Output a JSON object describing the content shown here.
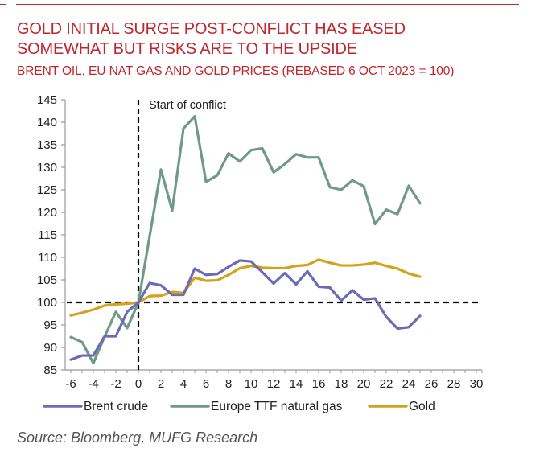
{
  "title_line1": "GOLD INITIAL SURGE POST-CONFLICT HAS EASED",
  "title_line2": "SOMEWHAT BUT RISKS ARE TO THE UPSIDE",
  "subtitle": "BRENT OIL, EU NAT GAS AND GOLD PRICES (REBASED 6 OCT 2023 = 100)",
  "source": "Source: Bloomberg, MUFG Research",
  "colors": {
    "title": "#c0262d",
    "brent": "#6b6bb8",
    "gas": "#6f9a85",
    "gold": "#d4a21a",
    "axis": "#999999",
    "reference": "#000000"
  },
  "chart_data": {
    "type": "line",
    "title": "BRENT OIL, EU NAT GAS AND GOLD PRICES (REBASED 6 OCT 2023 = 100)",
    "xlabel": "",
    "ylabel": "",
    "xlim": [
      -6.5,
      30.5
    ],
    "ylim": [
      85,
      145
    ],
    "xticks": [
      -6,
      -4,
      -2,
      0,
      2,
      4,
      6,
      8,
      10,
      12,
      14,
      16,
      18,
      20,
      22,
      24,
      26,
      28,
      30
    ],
    "xtick_labels": [
      "-6",
      "-4",
      "-2",
      "0",
      "2",
      "4",
      "6",
      "8",
      "10",
      "12",
      "14",
      "16",
      "18",
      "20",
      "22",
      "24",
      "26",
      "28",
      "30"
    ],
    "yticks": [
      85,
      90,
      95,
      100,
      105,
      110,
      115,
      120,
      125,
      130,
      135,
      140,
      145
    ],
    "ytick_labels": [
      "85",
      "90",
      "95",
      "100",
      "105",
      "110",
      "115",
      "120",
      "125",
      "130",
      "135",
      "140",
      "145"
    ],
    "grid": false,
    "legend_position": "bottom",
    "reference_lines": {
      "vertical_x": 0,
      "horizontal_y": 100,
      "horizontal_x_end": 30
    },
    "annotations": [
      {
        "text": "Start of conflict",
        "x": 0,
        "y": 145
      }
    ],
    "x": [
      -6,
      -5,
      -4,
      -3,
      -2,
      -1,
      0,
      1,
      2,
      3,
      4,
      5,
      6,
      7,
      8,
      9,
      10,
      11,
      12,
      13,
      14,
      15,
      16,
      17,
      18,
      19,
      20,
      21,
      22,
      23,
      24,
      25
    ],
    "series": [
      {
        "name": "Brent crude",
        "color_key": "brent",
        "values": [
          87.3,
          88.2,
          88.2,
          92.5,
          92.5,
          97.9,
          100,
          104.3,
          103.8,
          101.7,
          101.7,
          107.5,
          106.1,
          106.3,
          107.9,
          109.3,
          109.1,
          106.7,
          104.2,
          106.5,
          104.0,
          106.9,
          103.5,
          103.3,
          100.4,
          102.7,
          100.6,
          100.9,
          96.8,
          94.2,
          94.5,
          97.0
        ]
      },
      {
        "name": "Europe TTF natural gas",
        "color_key": "gas",
        "values": [
          92.3,
          91.2,
          86.5,
          92.4,
          97.9,
          94.3,
          100,
          114.7,
          129.5,
          120.4,
          138.6,
          141.3,
          126.8,
          128.2,
          133.1,
          131.3,
          133.8,
          134.2,
          128.9,
          130.7,
          132.9,
          132.2,
          132.2,
          125.6,
          125.0,
          127.1,
          125.8,
          117.4,
          120.6,
          119.6,
          125.9,
          122.0
        ]
      },
      {
        "name": "Gold",
        "color_key": "gold",
        "values": [
          97.1,
          97.7,
          98.4,
          99.3,
          99.6,
          99.7,
          100,
          101.4,
          101.5,
          102.3,
          102.1,
          105.5,
          104.8,
          104.9,
          106.1,
          107.6,
          108.1,
          107.7,
          107.6,
          107.6,
          108.1,
          108.3,
          109.5,
          108.8,
          108.2,
          108.2,
          108.4,
          108.8,
          108.1,
          107.5,
          106.4,
          105.7
        ]
      }
    ]
  }
}
